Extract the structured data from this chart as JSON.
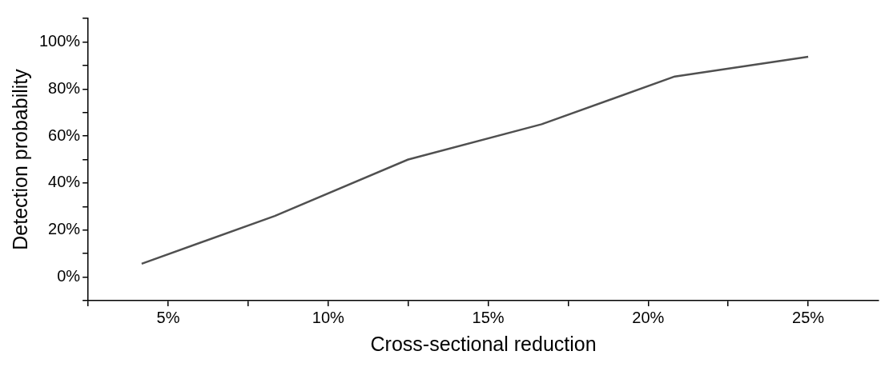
{
  "chart_data": {
    "type": "line",
    "xlabel": "Cross-sectional reduction",
    "ylabel": "Detection probability",
    "x": [
      4.17,
      8.33,
      12.5,
      16.67,
      20.83,
      25
    ],
    "series": [
      {
        "color": "#505050",
        "values": [
          5.7,
          26,
          50,
          65,
          85.3,
          93.7
        ]
      }
    ],
    "xlim": [
      2.5,
      27.2
    ],
    "xticks": [
      {
        "value": 2.5,
        "label": null
      },
      {
        "value": 5,
        "label": "5%"
      },
      {
        "value": 7.5,
        "label": null
      },
      {
        "value": 10,
        "label": "10%"
      },
      {
        "value": 12.5,
        "label": null
      },
      {
        "value": 15,
        "label": "15%"
      },
      {
        "value": 17.5,
        "label": null
      },
      {
        "value": 20,
        "label": "20%"
      },
      {
        "value": 22.5,
        "label": null
      },
      {
        "value": 25,
        "label": "25%"
      }
    ],
    "ylim": [
      -10,
      110
    ],
    "yticks": [
      {
        "value": -10,
        "label": null
      },
      {
        "value": 0,
        "label": "0%"
      },
      {
        "value": 10,
        "label": null
      },
      {
        "value": 20,
        "label": "20%"
      },
      {
        "value": 30,
        "label": null
      },
      {
        "value": 40,
        "label": "40%"
      },
      {
        "value": 50,
        "label": null
      },
      {
        "value": 60,
        "label": "60%"
      },
      {
        "value": 70,
        "label": null
      },
      {
        "value": 80,
        "label": "80%"
      },
      {
        "value": 90,
        "label": null
      },
      {
        "value": 100,
        "label": "100%"
      },
      {
        "value": 110,
        "label": null
      }
    ],
    "grid": false,
    "legend": false,
    "marker": "none",
    "line_style": "solid"
  }
}
